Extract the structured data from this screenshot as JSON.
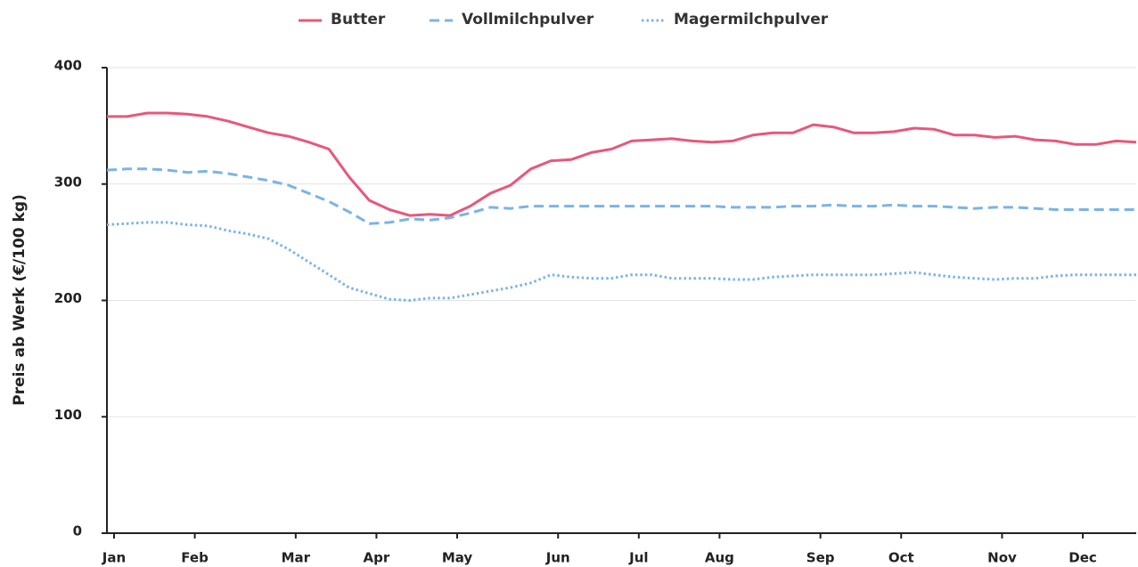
{
  "chart_data": {
    "type": "line",
    "categories": [
      "Jan",
      null,
      null,
      null,
      "Feb",
      null,
      null,
      null,
      null,
      "Mar",
      null,
      null,
      null,
      "Apr",
      null,
      null,
      null,
      "May",
      null,
      null,
      null,
      null,
      "Jun",
      null,
      null,
      null,
      "Jul",
      null,
      null,
      null,
      "Aug",
      null,
      null,
      null,
      null,
      "Sep",
      null,
      null,
      null,
      "Oct",
      null,
      null,
      null,
      null,
      "Nov",
      null,
      null,
      null,
      "Dec",
      null,
      null,
      null
    ],
    "series": [
      {
        "name": "Butter",
        "color": "#e9577a",
        "dash": "solid",
        "values": [
          358,
          358,
          361,
          361,
          360,
          358,
          354,
          349,
          344,
          341,
          336,
          330,
          306,
          286,
          278,
          273,
          274,
          273,
          281,
          292,
          299,
          313,
          320,
          321,
          327,
          330,
          337,
          338,
          339,
          337,
          336,
          337,
          342,
          344,
          344,
          351,
          349,
          344,
          344,
          345,
          348,
          347,
          342,
          342,
          340,
          341,
          338,
          337,
          334,
          334,
          337,
          336
        ]
      },
      {
        "name": "Vollmilchpulver",
        "color": "#7ab4e8",
        "dash": "dashed",
        "values": [
          312,
          313,
          313,
          312,
          310,
          311,
          309,
          306,
          303,
          299,
          292,
          285,
          276,
          266,
          267,
          270,
          269,
          271,
          275,
          280,
          279,
          281,
          281,
          281,
          281,
          281,
          281,
          281,
          281,
          281,
          281,
          280,
          280,
          280,
          281,
          281,
          282,
          281,
          281,
          282,
          281,
          281,
          280,
          279,
          280,
          280,
          279,
          278,
          278,
          278,
          278,
          278
        ]
      },
      {
        "name": "Magermilchpulver",
        "color": "#7ab4e8",
        "dash": "dotted",
        "values": [
          265,
          266,
          267,
          267,
          265,
          264,
          260,
          257,
          253,
          244,
          233,
          222,
          211,
          206,
          201,
          200,
          202,
          202,
          205,
          208,
          211,
          215,
          222,
          220,
          219,
          219,
          222,
          222,
          219,
          219,
          219,
          218,
          218,
          220,
          221,
          222,
          222,
          222,
          222,
          223,
          224,
          222,
          220,
          219,
          218,
          219,
          219,
          221,
          222,
          222,
          222,
          222
        ]
      }
    ],
    "y_label": "Preis ab Werk (€/100 kg)",
    "ylim": [
      0,
      400
    ],
    "yticks": [
      0,
      100,
      200,
      300,
      400
    ],
    "grid": true
  }
}
